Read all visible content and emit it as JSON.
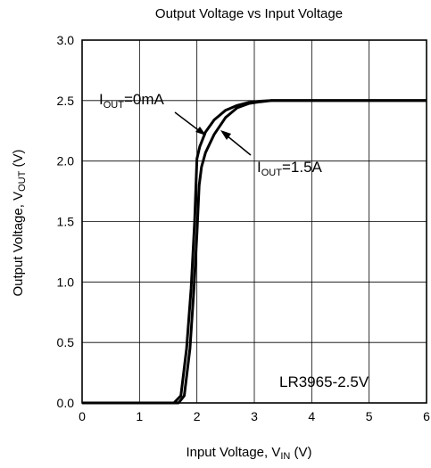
{
  "chart_data": {
    "type": "line",
    "title": "Output Voltage vs Input Voltage",
    "xlabel": {
      "prefix": "Input Voltage, V",
      "sub": "IN",
      "suffix": " (V)"
    },
    "ylabel": {
      "prefix": "Output Voltage, V",
      "sub": "OUT",
      "suffix": " (V)"
    },
    "xlim": [
      0,
      6
    ],
    "ylim": [
      0,
      3
    ],
    "x_ticks": [
      "0",
      "1",
      "2",
      "3",
      "4",
      "5",
      "6"
    ],
    "y_ticks": [
      "0.0",
      "0.5",
      "1.0",
      "1.5",
      "2.0",
      "2.5",
      "3.0"
    ],
    "grid": true,
    "annotation": "LR3965-2.5V",
    "series": [
      {
        "label": {
          "prefix": "I",
          "sub": "OUT",
          "suffix": "=0mA"
        },
        "x": [
          0,
          1.6,
          1.72,
          1.82,
          1.9,
          1.96,
          2.0,
          2.05,
          2.15,
          2.3,
          2.5,
          2.7,
          2.9,
          3.1,
          3.3,
          4,
          5,
          6
        ],
        "y": [
          0,
          0,
          0.06,
          0.45,
          0.95,
          1.5,
          2.02,
          2.12,
          2.24,
          2.34,
          2.42,
          2.46,
          2.485,
          2.495,
          2.5,
          2.5,
          2.5,
          2.5
        ]
      },
      {
        "label": {
          "prefix": "I",
          "sub": "OUT",
          "suffix": "=1.5A"
        },
        "x": [
          0,
          1.68,
          1.78,
          1.88,
          1.95,
          2.0,
          2.04,
          2.08,
          2.15,
          2.3,
          2.5,
          2.7,
          2.9,
          3.1,
          3.3,
          4,
          5,
          6
        ],
        "y": [
          0,
          0,
          0.06,
          0.45,
          0.95,
          1.4,
          1.8,
          1.95,
          2.07,
          2.22,
          2.36,
          2.44,
          2.475,
          2.49,
          2.5,
          2.5,
          2.5,
          2.5
        ]
      }
    ]
  }
}
